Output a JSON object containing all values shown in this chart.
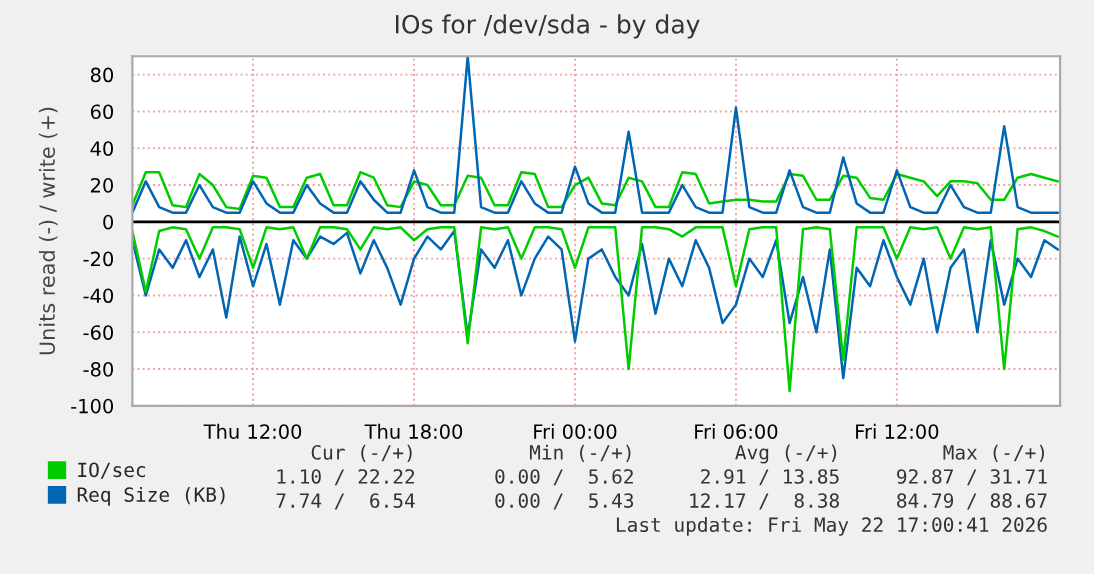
{
  "chart_data": {
    "type": "line",
    "title": "IOs for /dev/sda - by day",
    "ylabel": "Units read (-) / write (+)",
    "x": [
      "2026-05-21T07:30",
      "2026-05-21T08:00",
      "2026-05-21T08:30",
      "2026-05-21T09:00",
      "2026-05-21T09:30",
      "2026-05-21T10:00",
      "2026-05-21T10:30",
      "2026-05-21T11:00",
      "2026-05-21T11:30",
      "2026-05-21T12:00",
      "2026-05-21T12:30",
      "2026-05-21T13:00",
      "2026-05-21T13:30",
      "2026-05-21T14:00",
      "2026-05-21T14:30",
      "2026-05-21T15:00",
      "2026-05-21T15:30",
      "2026-05-21T16:00",
      "2026-05-21T16:30",
      "2026-05-21T17:00",
      "2026-05-21T17:30",
      "2026-05-21T18:00",
      "2026-05-21T18:30",
      "2026-05-21T19:00",
      "2026-05-21T19:30",
      "2026-05-21T20:00",
      "2026-05-21T20:30",
      "2026-05-21T21:00",
      "2026-05-21T21:30",
      "2026-05-21T22:00",
      "2026-05-21T22:30",
      "2026-05-21T23:00",
      "2026-05-21T23:30",
      "2026-05-22T00:00",
      "2026-05-22T00:30",
      "2026-05-22T01:00",
      "2026-05-22T01:30",
      "2026-05-22T02:00",
      "2026-05-22T02:30",
      "2026-05-22T03:00",
      "2026-05-22T03:30",
      "2026-05-22T04:00",
      "2026-05-22T04:30",
      "2026-05-22T05:00",
      "2026-05-22T05:30",
      "2026-05-22T06:00",
      "2026-05-22T06:30",
      "2026-05-22T07:00",
      "2026-05-22T07:30",
      "2026-05-22T08:00",
      "2026-05-22T08:30",
      "2026-05-22T09:00",
      "2026-05-22T09:30",
      "2026-05-22T10:00",
      "2026-05-22T10:30",
      "2026-05-22T11:00",
      "2026-05-22T11:30",
      "2026-05-22T12:00",
      "2026-05-22T12:30",
      "2026-05-22T13:00",
      "2026-05-22T13:30",
      "2026-05-22T14:00",
      "2026-05-22T14:30",
      "2026-05-22T15:00",
      "2026-05-22T15:30",
      "2026-05-22T16:00",
      "2026-05-22T16:30",
      "2026-05-22T17:00",
      "2026-05-22T17:30",
      "2026-05-22T18:00"
    ],
    "series": [
      {
        "color": "#0066b3",
        "values": [
          -10,
          -40,
          -15,
          -25,
          -10,
          -30,
          -15,
          -52,
          -8,
          -35,
          -12,
          -45,
          -10,
          -20,
          -8,
          -12,
          -6,
          -28,
          -10,
          -25,
          -45,
          -20,
          -8,
          -15,
          -5,
          -62,
          -15,
          -25,
          -10,
          -40,
          -20,
          -8,
          -15,
          -65,
          -20,
          -15,
          -30,
          -40,
          -12,
          -50,
          -20,
          -35,
          -10,
          -25,
          -55,
          -45,
          -20,
          -30,
          -10,
          -55,
          -30,
          -60,
          -15,
          -85,
          -25,
          -35,
          -10,
          -30,
          -45,
          -20,
          -60,
          -25,
          -15,
          -60,
          -10,
          -45,
          -20,
          -30,
          -10,
          -15
        ]
      },
      {
        "color": "#00cc00",
        "values": [
          -5,
          -38,
          -5,
          -3,
          -4,
          -20,
          -3,
          -3,
          -4,
          -25,
          -3,
          -4,
          -3,
          -20,
          -3,
          -3,
          -4,
          -15,
          -3,
          -4,
          -3,
          -10,
          -4,
          -3,
          -3,
          -66,
          -3,
          -4,
          -3,
          -20,
          -3,
          -3,
          -4,
          -25,
          -3,
          -3,
          -3,
          -80,
          -3,
          -3,
          -4,
          -8,
          -3,
          -3,
          -3,
          -35,
          -4,
          -3,
          -3,
          -92,
          -4,
          -3,
          -4,
          -75,
          -3,
          -3,
          -3,
          -20,
          -3,
          -4,
          -3,
          -20,
          -3,
          -4,
          -3,
          -80,
          -4,
          -3,
          -5,
          -8
        ]
      },
      {
        "name": "IO/sec",
        "color": "#00cc00",
        "values": [
          9,
          27,
          27,
          9,
          8,
          26,
          20,
          8,
          7,
          25,
          24,
          8,
          8,
          24,
          26,
          9,
          9,
          27,
          24,
          9,
          8,
          22,
          20,
          9,
          9,
          25,
          24,
          9,
          9,
          27,
          26,
          8,
          8,
          20,
          24,
          10,
          9,
          24,
          22,
          8,
          8,
          27,
          26,
          10,
          11,
          12,
          12,
          11,
          11,
          26,
          25,
          12,
          12,
          25,
          24,
          13,
          12,
          26,
          24,
          22,
          14,
          22,
          22,
          21,
          12,
          12,
          24,
          26,
          24,
          22
        ]
      },
      {
        "name": "Req Size (KB)",
        "color": "#0066b3",
        "values": [
          5,
          22,
          8,
          5,
          5,
          20,
          8,
          5,
          5,
          22,
          10,
          5,
          5,
          20,
          10,
          5,
          5,
          22,
          12,
          5,
          5,
          28,
          8,
          5,
          5,
          90,
          8,
          5,
          5,
          22,
          10,
          5,
          5,
          30,
          10,
          5,
          5,
          49,
          5,
          5,
          5,
          20,
          8,
          5,
          5,
          62,
          8,
          5,
          5,
          28,
          8,
          5,
          5,
          35,
          10,
          5,
          5,
          28,
          8,
          5,
          5,
          20,
          8,
          5,
          5,
          52,
          8,
          5,
          5,
          5
        ]
      }
    ],
    "xlim": [
      "2026-05-21T07:30",
      "2026-05-22T18:05"
    ],
    "xticks": [
      {
        "value": "2026-05-21T12:00",
        "label": "Thu 12:00"
      },
      {
        "value": "2026-05-21T18:00",
        "label": "Thu 18:00"
      },
      {
        "value": "2026-05-22T00:00",
        "label": "Fri 00:00"
      },
      {
        "value": "2026-05-22T06:00",
        "label": "Fri 06:00"
      },
      {
        "value": "2026-05-22T12:00",
        "label": "Fri 12:00"
      }
    ],
    "ylim": [
      -100,
      90
    ],
    "yticks": [
      -100,
      -80,
      -60,
      -40,
      -20,
      0,
      20,
      40,
      60,
      80
    ],
    "ref_lines": [
      {
        "axis": "y",
        "value": 0,
        "color": "#000000"
      }
    ],
    "grid": true,
    "legend": "bottom",
    "marker": "none",
    "line_style": "solid",
    "annotations": [
      "Cur (-/+)",
      "Min (-/+)",
      "Avg (-/+)",
      "Max (-/+)",
      "1.10 / 22.22",
      "0.00 /  5.62",
      "2.91 / 13.85",
      "92.87 / 31.71",
      "7.74 /  6.54",
      "0.00 /  5.43",
      "12.17 /  8.38",
      "84.79 / 88.67",
      "Last update: Fri May 22 17:00:41 2026"
    ]
  }
}
